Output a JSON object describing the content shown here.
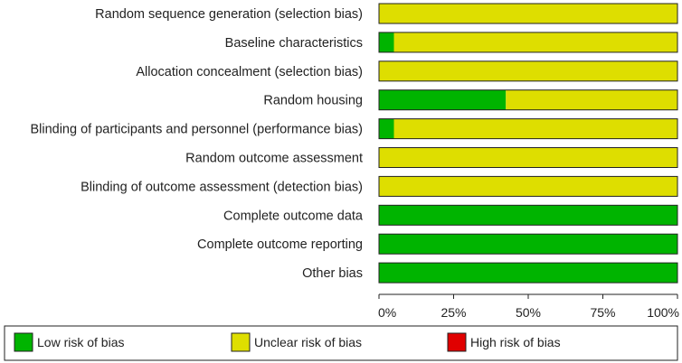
{
  "chart_data": {
    "type": "bar",
    "orientation": "horizontal",
    "stacked": true,
    "categories": [
      "Random sequence generation (selection bias)",
      "Baseline characteristics",
      "Allocation concealment (selection bias)",
      "Random housing",
      "Blinding of participants and personnel (performance bias)",
      "Random outcome assessment",
      "Blinding of outcome assessment (detection bias)",
      "Complete outcome data",
      "Complete outcome reporting",
      "Other bias"
    ],
    "series": [
      {
        "name": "Low risk of bias",
        "color": "#00b400",
        "values": [
          0,
          5,
          0,
          42.5,
          5,
          0,
          0,
          100,
          100,
          100
        ]
      },
      {
        "name": "Unclear risk of bias",
        "color": "#dede00",
        "values": [
          100,
          95,
          100,
          57.5,
          95,
          100,
          100,
          0,
          0,
          0
        ]
      },
      {
        "name": "High risk of bias",
        "color": "#e00000",
        "values": [
          0,
          0,
          0,
          0,
          0,
          0,
          0,
          0,
          0,
          0
        ]
      }
    ],
    "xticks": [
      "0%",
      "25%",
      "50%",
      "75%",
      "100%"
    ],
    "xlim": [
      0,
      100
    ],
    "legend_position": "bottom"
  }
}
